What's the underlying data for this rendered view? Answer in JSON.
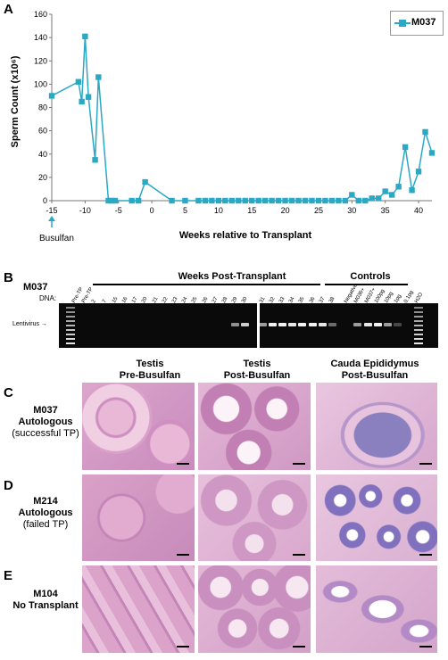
{
  "panels": {
    "a": "A",
    "b": "B",
    "c": "C",
    "d": "D",
    "e": "E"
  },
  "chart_data": {
    "type": "line",
    "ylabel": "Sperm Count (x10⁶)",
    "xlabel": "Weeks relative to Transplant",
    "xlim": [
      -15,
      42
    ],
    "ylim": [
      0,
      160
    ],
    "xticks": [
      -15,
      -10,
      -5,
      0,
      5,
      10,
      15,
      20,
      25,
      30,
      35,
      40
    ],
    "yticks": [
      0,
      20,
      40,
      60,
      80,
      100,
      120,
      140,
      160
    ],
    "legend": "top-right",
    "color": "#2aa8c4",
    "series": [
      {
        "name": "M037",
        "x": [
          -15,
          -11,
          -10.5,
          -10,
          -9.5,
          -8.5,
          -8,
          -6.5,
          -6,
          -5.5,
          -3,
          -2,
          -1,
          3,
          5,
          7,
          8,
          9,
          10,
          11,
          12,
          13,
          14,
          15,
          16,
          17,
          18,
          19,
          20,
          21,
          22,
          23,
          24,
          25,
          26,
          27,
          28,
          29,
          30,
          31,
          32,
          33,
          34,
          35,
          36,
          37,
          38,
          39,
          40,
          41,
          42
        ],
        "y": [
          90,
          102,
          85,
          141,
          89,
          35,
          106,
          0,
          0,
          0,
          0,
          0,
          16,
          0,
          0,
          0,
          0,
          0,
          0,
          0,
          0,
          0,
          0,
          0,
          0,
          0,
          0,
          0,
          0,
          0,
          0,
          0,
          0,
          0,
          0,
          0,
          0,
          0,
          5,
          0,
          0,
          2,
          2,
          8,
          5,
          12,
          46,
          9,
          25,
          59,
          41
        ]
      }
    ],
    "annotation": "Busulfan"
  },
  "gel": {
    "title": "M037",
    "weeks_header": "Weeks Post-Transplant",
    "controls_header": "Controls",
    "dna_label": "DNA:",
    "band_label": "Lentivirus",
    "lanes": [
      "Pre-TP",
      "Pre-TP",
      "2",
      "7",
      "15",
      "16",
      "17",
      "20",
      "21",
      "22",
      "23",
      "24",
      "25",
      "26",
      "27",
      "28",
      "29",
      "30",
      "31",
      "32",
      "33",
      "34",
      "35",
      "36",
      "37",
      "38",
      "Negative",
      "M036+",
      "M037+",
      "100pg",
      "10pg",
      "1pg",
      "0.1pg",
      "H2O"
    ]
  },
  "histology": {
    "col1": "Testis\nPre-Busulfan",
    "col2": "Testis\nPost-Busulfan",
    "col3": "Cauda Epididymus\nPost-Busulfan",
    "rows": [
      {
        "id": "M037",
        "type": "Autologous",
        "note": "(successful TP)"
      },
      {
        "id": "M214",
        "type": "Autologous",
        "note": "(failed TP)"
      },
      {
        "id": "M104",
        "type": "No Transplant",
        "note": ""
      }
    ]
  }
}
